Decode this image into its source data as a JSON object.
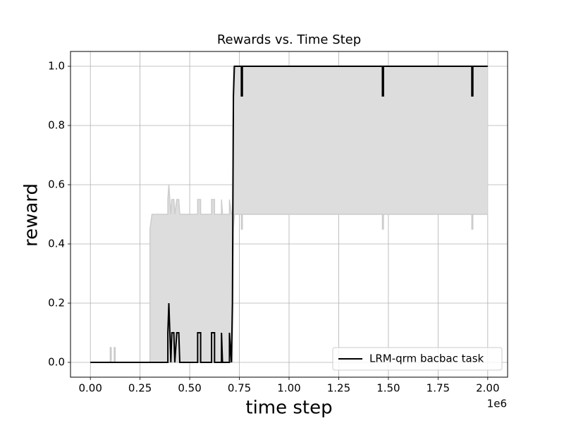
{
  "chart_data": {
    "type": "line",
    "title": "Rewards vs. Time Step",
    "xlabel": "time step",
    "ylabel": "reward",
    "x_offset_label": "1e6",
    "xlim": [
      -0.1,
      2.1
    ],
    "ylim": [
      -0.05,
      1.05
    ],
    "xticks": [
      {
        "value": 0,
        "label": "0.00"
      },
      0.25,
      {
        "value": 0.5,
        "label": "0.50"
      },
      0.75,
      {
        "value": 1,
        "label": "1.00"
      },
      1.25,
      {
        "value": 1.5,
        "label": "1.50"
      },
      1.75,
      {
        "value": 2,
        "label": "2.00"
      }
    ],
    "yticks": [
      {
        "value": 0,
        "label": "0.0"
      },
      0.2,
      0.4,
      0.6,
      0.8,
      {
        "value": 1,
        "label": "1.0"
      }
    ],
    "grid": true,
    "legend_position": "lower right",
    "x": [
      0,
      0.1,
      0.1,
      0.105,
      0.105,
      0.12,
      0.12,
      0.125,
      0.125,
      0.3,
      0.3,
      0.31,
      0.39,
      0.39,
      0.395,
      0.4,
      0.405,
      0.41,
      0.42,
      0.425,
      0.435,
      0.445,
      0.45,
      0.54,
      0.54,
      0.555,
      0.555,
      0.61,
      0.61,
      0.625,
      0.625,
      0.66,
      0.66,
      0.665,
      0.7,
      0.7,
      0.71,
      0.715,
      0.72,
      0.725,
      0.76,
      0.76,
      0.765,
      0.765,
      1.47,
      1.47,
      1.475,
      1.475,
      1.92,
      1.92,
      1.925,
      1.925,
      2.0
    ],
    "series": [
      {
        "name": "LRM-qrm bacbac task",
        "color": "#000000",
        "values": [
          0,
          0,
          0,
          0,
          0,
          0,
          0,
          0,
          0,
          0,
          0,
          0,
          0,
          0.1,
          0.2,
          0.1,
          0,
          0.1,
          0.1,
          0,
          0.1,
          0.1,
          0,
          0,
          0.1,
          0.1,
          0,
          0,
          0.1,
          0.1,
          0,
          0,
          0.1,
          0,
          0,
          0.1,
          0,
          0.2,
          0.9,
          1,
          1,
          0.9,
          0.9,
          1,
          1,
          0.9,
          0.9,
          1,
          1,
          0.9,
          0.9,
          1,
          1
        ]
      }
    ],
    "band": {
      "color": "#dddddd",
      "edge_color": "#cccccc",
      "lower": [
        0,
        0,
        0,
        0,
        0,
        0,
        0,
        0,
        0,
        0,
        0,
        0,
        0,
        0,
        0,
        0,
        0,
        0,
        0,
        0,
        0,
        0,
        0,
        0,
        0,
        0,
        0,
        0,
        0,
        0,
        0,
        0,
        0,
        0,
        0,
        0,
        0,
        0,
        0.45,
        0.5,
        0.5,
        0.45,
        0.45,
        0.5,
        0.5,
        0.45,
        0.45,
        0.5,
        0.5,
        0.45,
        0.45,
        0.5,
        0.5
      ],
      "upper": [
        0,
        0,
        0.05,
        0.05,
        0,
        0,
        0.05,
        0.05,
        0,
        0,
        0.45,
        0.5,
        0.5,
        0.55,
        0.6,
        0.55,
        0.5,
        0.55,
        0.55,
        0.5,
        0.55,
        0.55,
        0.5,
        0.5,
        0.55,
        0.55,
        0.5,
        0.5,
        0.55,
        0.55,
        0.5,
        0.5,
        0.55,
        0.5,
        0.5,
        0.55,
        0.5,
        0.5,
        1,
        1,
        1,
        1,
        1,
        1,
        1,
        1,
        1,
        1,
        1,
        1,
        1,
        1,
        1
      ]
    }
  }
}
